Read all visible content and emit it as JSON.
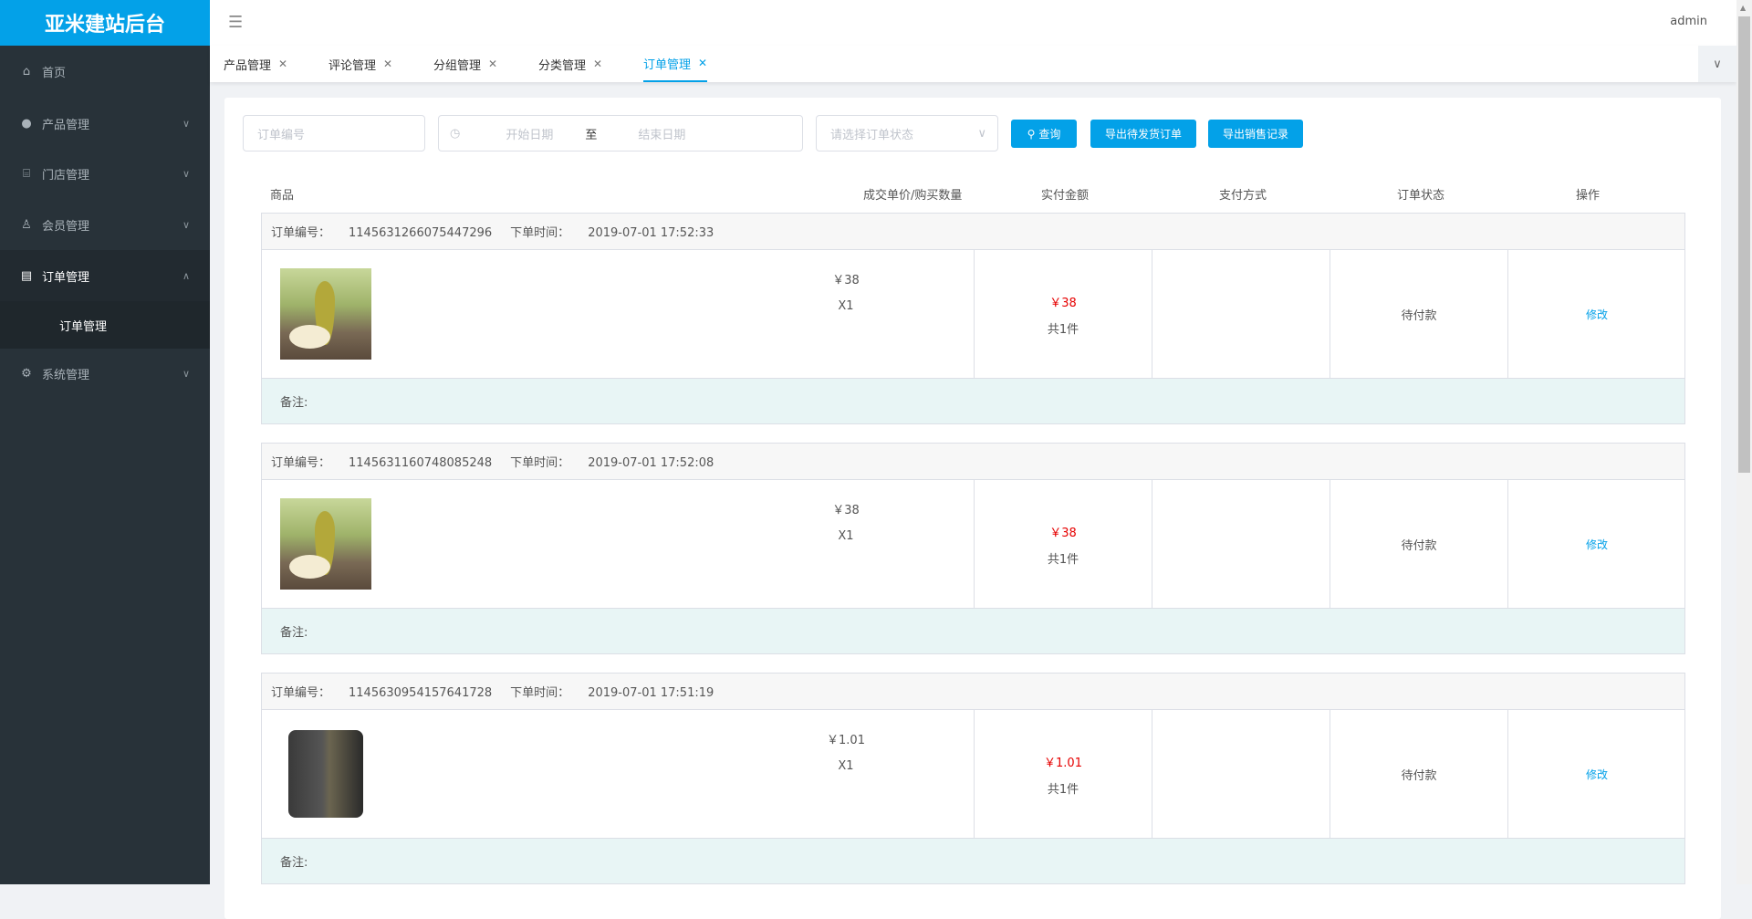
{
  "app": {
    "title": "亚米建站后台",
    "user": "admin"
  },
  "sidebar": {
    "items": [
      {
        "label": "首页",
        "icon": "home-icon"
      },
      {
        "label": "产品管理",
        "icon": "user-icon"
      },
      {
        "label": "门店管理",
        "icon": "store-icon"
      },
      {
        "label": "会员管理",
        "icon": "award-icon"
      },
      {
        "label": "订单管理",
        "icon": "document-icon",
        "expanded": true
      },
      {
        "label": "系统管理",
        "icon": "gear-icon"
      }
    ],
    "sub_item": "订单管理"
  },
  "tabs": [
    {
      "label": "产品管理"
    },
    {
      "label": "评论管理"
    },
    {
      "label": "分组管理"
    },
    {
      "label": "分类管理"
    },
    {
      "label": "订单管理",
      "active": true
    }
  ],
  "filters": {
    "order_no_placeholder": "订单编号",
    "start_placeholder": "开始日期",
    "to": "至",
    "end_placeholder": "结束日期",
    "status_placeholder": "请选择订单状态"
  },
  "buttons": {
    "search": "查询",
    "export_pending": "导出待发货订单",
    "export_sales": "导出销售记录"
  },
  "columns": {
    "product": "商品",
    "price_qty": "成交单价/购买数量",
    "paid": "实付金额",
    "payment": "支付方式",
    "status": "订单状态",
    "action": "操作"
  },
  "labels": {
    "order_no": "订单编号：",
    "time": "下单时间：",
    "remark": "备注:",
    "edit": "修改"
  },
  "orders": [
    {
      "no": "1145631266075447296",
      "time": "2019-07-01 17:52:33",
      "price": "￥38",
      "qty": "X1",
      "paid": "￥38",
      "count": "共1件",
      "payment": "",
      "status": "待付款",
      "image": "pear"
    },
    {
      "no": "1145631160748085248",
      "time": "2019-07-01 17:52:08",
      "price": "￥38",
      "qty": "X1",
      "paid": "￥38",
      "count": "共1件",
      "payment": "",
      "status": "待付款",
      "image": "pear"
    },
    {
      "no": "1145630954157641728",
      "time": "2019-07-01 17:51:19",
      "price": "￥1.01",
      "qty": "X1",
      "paid": "￥1.01",
      "count": "共1件",
      "payment": "",
      "status": "待付款",
      "image": "phone"
    }
  ],
  "colors": {
    "accent": "#03a1e8",
    "sidebar": "#283239",
    "price": "#e60000",
    "remark_bg": "#e8f5f5"
  }
}
